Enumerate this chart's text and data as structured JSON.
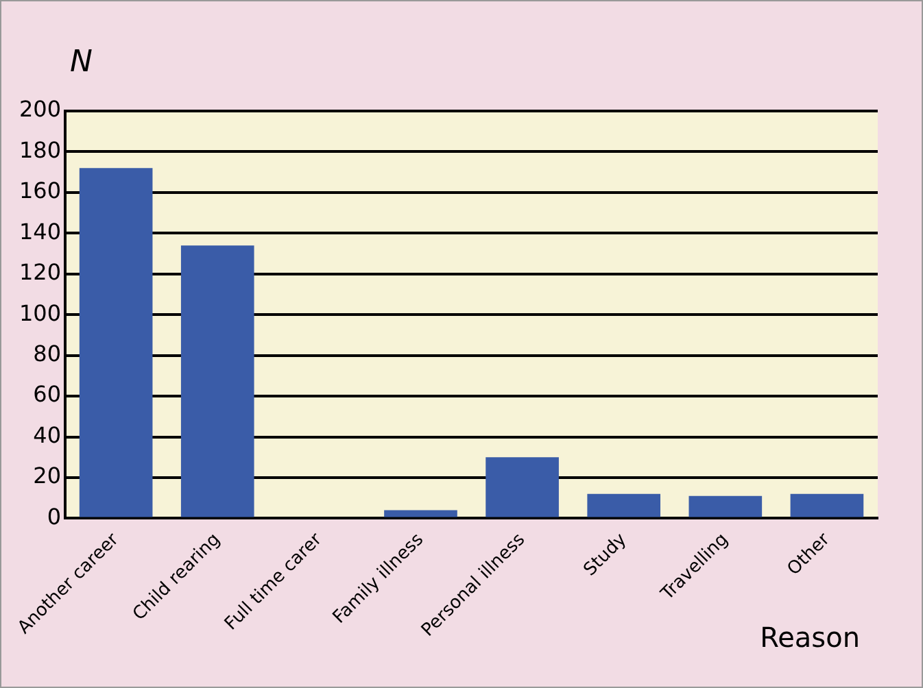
{
  "chart_data": {
    "type": "bar",
    "ylabel": "N",
    "xlabel": "Reason",
    "categories": [
      "Another career",
      "Child rearing",
      "Full time carer",
      "Family illness",
      "Personal illness",
      "Study",
      "Travelling",
      "Other"
    ],
    "values": [
      172,
      134,
      0,
      4,
      30,
      12,
      11,
      12
    ],
    "color": "#3a5ca8",
    "ylim": [
      0,
      200
    ],
    "yticks": [
      0,
      20,
      40,
      60,
      80,
      100,
      120,
      140,
      160,
      180,
      200
    ],
    "grid": "y"
  }
}
